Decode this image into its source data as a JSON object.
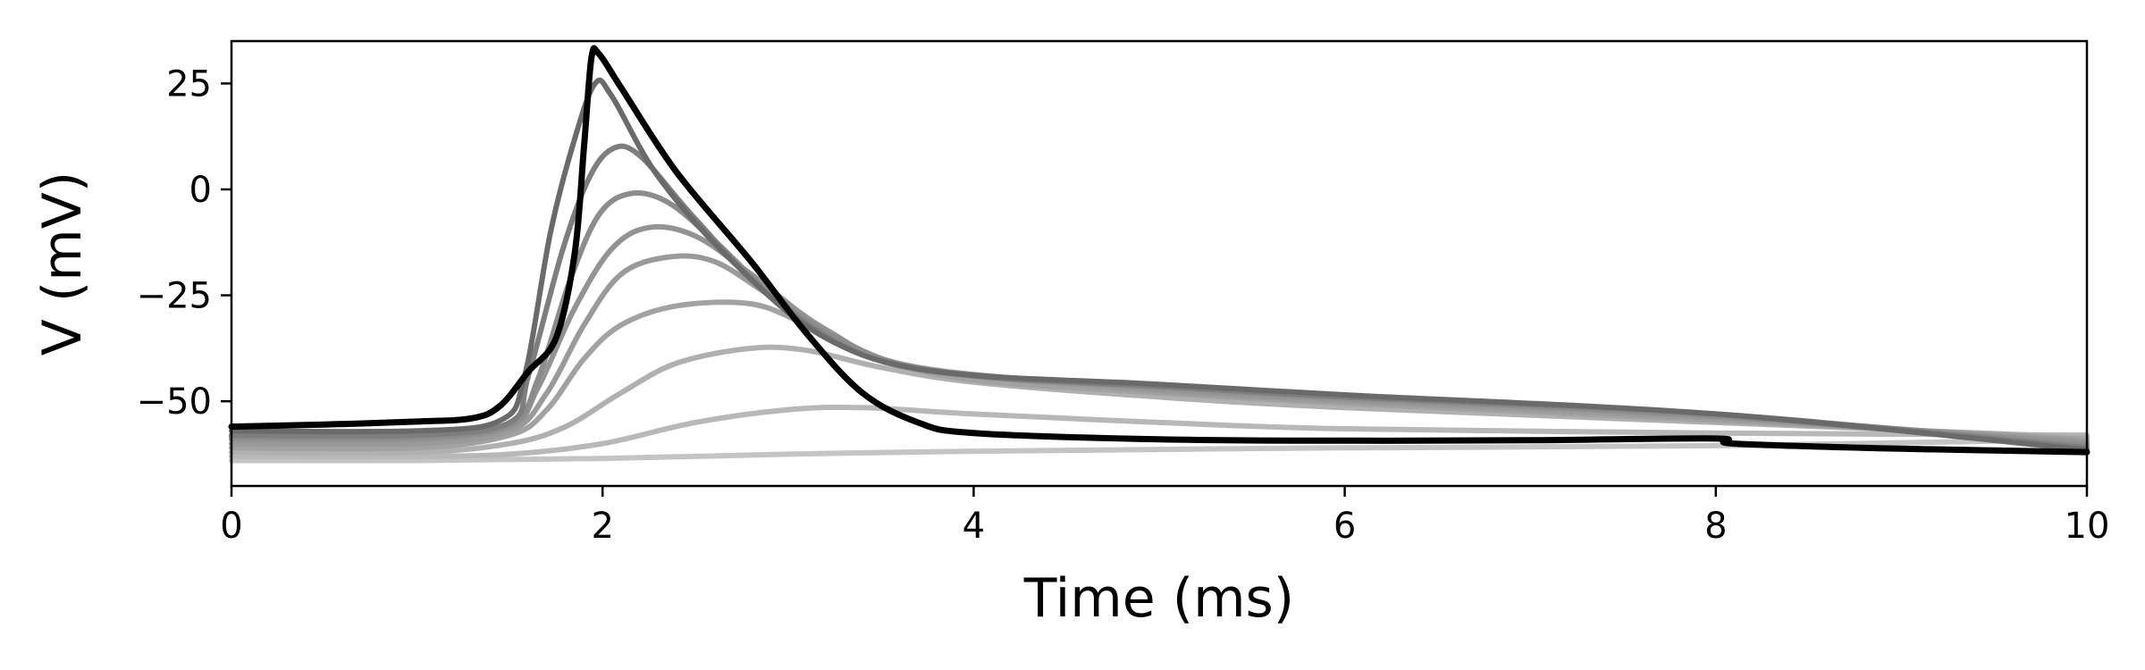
{
  "chart_data": {
    "type": "line",
    "title": "",
    "xlabel": "Time (ms)",
    "ylabel": "V (mV)",
    "xlim": [
      0,
      10
    ],
    "ylim": [
      -70,
      35
    ],
    "xticks": [
      0,
      2,
      4,
      6,
      8,
      10
    ],
    "xtick_labels": [
      "0",
      "2",
      "4",
      "6",
      "8",
      "10"
    ],
    "yticks": [
      -50,
      -25,
      0,
      25
    ],
    "ytick_labels": [
      "−50",
      "−25",
      "0",
      "25"
    ],
    "grid": false,
    "legend": "none",
    "series": [
      {
        "color": "#c4c4c4",
        "points": [
          [
            0,
            -64
          ],
          [
            1,
            -64
          ],
          [
            2,
            -63.5
          ],
          [
            3,
            -62.5
          ],
          [
            4,
            -61.8
          ],
          [
            6,
            -61
          ],
          [
            8,
            -60.5
          ],
          [
            10,
            -59
          ]
        ]
      },
      {
        "color": "#b8b8b8",
        "points": [
          [
            0,
            -63
          ],
          [
            1,
            -63
          ],
          [
            1.5,
            -62.5
          ],
          [
            2,
            -60
          ],
          [
            2.5,
            -55
          ],
          [
            3,
            -52
          ],
          [
            3.4,
            -51.5
          ],
          [
            4,
            -53
          ],
          [
            5,
            -55
          ],
          [
            6,
            -56.5
          ],
          [
            8,
            -57.5
          ],
          [
            10,
            -58
          ]
        ]
      },
      {
        "color": "#b0b0b0",
        "points": [
          [
            0,
            -62
          ],
          [
            1,
            -62
          ],
          [
            1.5,
            -60
          ],
          [
            1.8,
            -56
          ],
          [
            2.1,
            -48
          ],
          [
            2.4,
            -41
          ],
          [
            2.8,
            -37.5
          ],
          [
            3.1,
            -38
          ],
          [
            3.5,
            -42
          ],
          [
            4,
            -45.5
          ],
          [
            5,
            -49
          ],
          [
            6,
            -51.5
          ],
          [
            8,
            -55
          ],
          [
            10,
            -58.5
          ]
        ]
      },
      {
        "color": "#a2a2a2",
        "points": [
          [
            0,
            -61
          ],
          [
            1,
            -61
          ],
          [
            1.5,
            -58
          ],
          [
            1.7,
            -52
          ],
          [
            1.9,
            -40
          ],
          [
            2.1,
            -32
          ],
          [
            2.4,
            -27.5
          ],
          [
            2.8,
            -27
          ],
          [
            3.1,
            -32
          ],
          [
            3.5,
            -40
          ],
          [
            4,
            -45
          ],
          [
            5,
            -48
          ],
          [
            6,
            -50.5
          ],
          [
            8,
            -54.5
          ],
          [
            10,
            -59
          ]
        ]
      },
      {
        "color": "#9a9a9a",
        "points": [
          [
            0,
            -60
          ],
          [
            1,
            -60
          ],
          [
            1.5,
            -57
          ],
          [
            1.7,
            -48
          ],
          [
            1.9,
            -32
          ],
          [
            2.1,
            -20
          ],
          [
            2.35,
            -16
          ],
          [
            2.6,
            -17
          ],
          [
            2.9,
            -25
          ],
          [
            3.3,
            -36
          ],
          [
            3.8,
            -43
          ],
          [
            5,
            -47.5
          ],
          [
            6,
            -50
          ],
          [
            8,
            -54
          ],
          [
            10,
            -59.5
          ]
        ]
      },
      {
        "color": "#939393",
        "points": [
          [
            0,
            -59
          ],
          [
            1,
            -59
          ],
          [
            1.5,
            -56
          ],
          [
            1.65,
            -47
          ],
          [
            1.85,
            -28
          ],
          [
            2.05,
            -14
          ],
          [
            2.25,
            -9
          ],
          [
            2.5,
            -11
          ],
          [
            2.8,
            -20
          ],
          [
            3.2,
            -33
          ],
          [
            3.7,
            -42
          ],
          [
            5,
            -47
          ],
          [
            6,
            -49.5
          ],
          [
            8,
            -53.5
          ],
          [
            10,
            -60
          ]
        ]
      },
      {
        "color": "#8c8c8c",
        "points": [
          [
            0,
            -58.5
          ],
          [
            1,
            -58.5
          ],
          [
            1.5,
            -55.5
          ],
          [
            1.65,
            -45
          ],
          [
            1.82,
            -22
          ],
          [
            1.98,
            -6
          ],
          [
            2.15,
            -1
          ],
          [
            2.35,
            -3
          ],
          [
            2.6,
            -12
          ],
          [
            3,
            -28
          ],
          [
            3.5,
            -40
          ],
          [
            4,
            -44
          ],
          [
            5,
            -46.5
          ],
          [
            6,
            -49
          ],
          [
            8,
            -53.5
          ],
          [
            10,
            -60.5
          ]
        ]
      },
      {
        "color": "#7e7e7e",
        "points": [
          [
            0,
            -58
          ],
          [
            1,
            -58
          ],
          [
            1.5,
            -55
          ],
          [
            1.6,
            -44
          ],
          [
            1.78,
            -15
          ],
          [
            1.92,
            2
          ],
          [
            2.05,
            9.5
          ],
          [
            2.2,
            8
          ],
          [
            2.5,
            -7
          ],
          [
            2.9,
            -25
          ],
          [
            3.4,
            -39
          ],
          [
            4,
            -44
          ],
          [
            5,
            -46.5
          ],
          [
            6,
            -49
          ],
          [
            8,
            -53
          ],
          [
            10,
            -61
          ]
        ]
      },
      {
        "color": "#6a6a6a",
        "points": [
          [
            0,
            -57
          ],
          [
            1,
            -57
          ],
          [
            1.45,
            -54.5
          ],
          [
            1.58,
            -44
          ],
          [
            1.72,
            -10
          ],
          [
            1.85,
            12
          ],
          [
            1.96,
            25
          ],
          [
            2.05,
            22
          ],
          [
            2.3,
            3
          ],
          [
            2.7,
            -17
          ],
          [
            3.2,
            -35
          ],
          [
            3.8,
            -43
          ],
          [
            5,
            -46
          ],
          [
            6,
            -48.5
          ],
          [
            8,
            -53
          ],
          [
            10,
            -61.5
          ]
        ]
      },
      {
        "color": "#000000",
        "points": [
          [
            0,
            -56
          ],
          [
            0.5,
            -55.5
          ],
          [
            1,
            -54.8
          ],
          [
            1.3,
            -54
          ],
          [
            1.45,
            -51
          ],
          [
            1.6,
            -43
          ],
          [
            1.75,
            -35
          ],
          [
            1.85,
            -15
          ],
          [
            1.9,
            10
          ],
          [
            1.94,
            31
          ],
          [
            1.98,
            32
          ],
          [
            2.1,
            24
          ],
          [
            2.4,
            4
          ],
          [
            2.8,
            -17
          ],
          [
            3.1,
            -34
          ],
          [
            3.4,
            -48
          ],
          [
            3.7,
            -55
          ],
          [
            4,
            -57.5
          ],
          [
            5,
            -59
          ],
          [
            6,
            -59.3
          ],
          [
            7,
            -59.2
          ],
          [
            8,
            -58.8
          ],
          [
            8.1,
            -60
          ],
          [
            9,
            -61.2
          ],
          [
            10,
            -62
          ]
        ]
      }
    ]
  }
}
